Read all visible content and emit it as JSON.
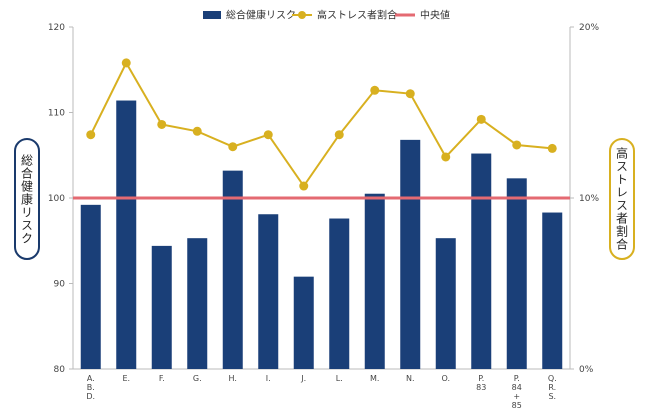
{
  "chart_data": {
    "type": "bar+line",
    "title": "",
    "categories": [
      [
        "A.",
        "B.",
        "D."
      ],
      [
        "E."
      ],
      [
        "F."
      ],
      [
        "G."
      ],
      [
        "H."
      ],
      [
        "I."
      ],
      [
        "J."
      ],
      [
        "L."
      ],
      [
        "M."
      ],
      [
        "N."
      ],
      [
        "O."
      ],
      [
        "P.",
        "83"
      ],
      [
        "P.",
        "84",
        "+",
        "85"
      ],
      [
        "Q.",
        "R.",
        "S."
      ]
    ],
    "series": [
      {
        "name": "総合健康リスク",
        "type": "bar",
        "axis": "left",
        "color": "#1a3f78",
        "values": [
          99.2,
          111.4,
          94.4,
          95.3,
          103.2,
          98.1,
          90.8,
          97.6,
          100.5,
          106.8,
          95.3,
          105.2,
          102.3,
          98.3
        ]
      },
      {
        "name": "高ストレス者割合",
        "type": "line",
        "axis": "right",
        "color": "#d8b020",
        "unit": "%",
        "values": [
          13.7,
          17.9,
          14.3,
          13.9,
          13.0,
          13.7,
          10.7,
          13.7,
          16.3,
          16.1,
          12.4,
          14.6,
          13.1,
          12.9
        ]
      }
    ],
    "reference_line": {
      "name": "中央値",
      "value": 100,
      "axis": "left",
      "color": "#e46a72"
    },
    "y_left": {
      "label": "総合健康リスク",
      "ylim": [
        80,
        120
      ],
      "ticks": [
        "80",
        "90",
        "100",
        "110",
        "120"
      ]
    },
    "y_right": {
      "label": "高ストレス者割合",
      "ylim": [
        0,
        20
      ],
      "ticks": [
        "0%",
        "10%",
        "20%"
      ]
    },
    "legend": {
      "placement": "top-center"
    },
    "grid": false
  }
}
